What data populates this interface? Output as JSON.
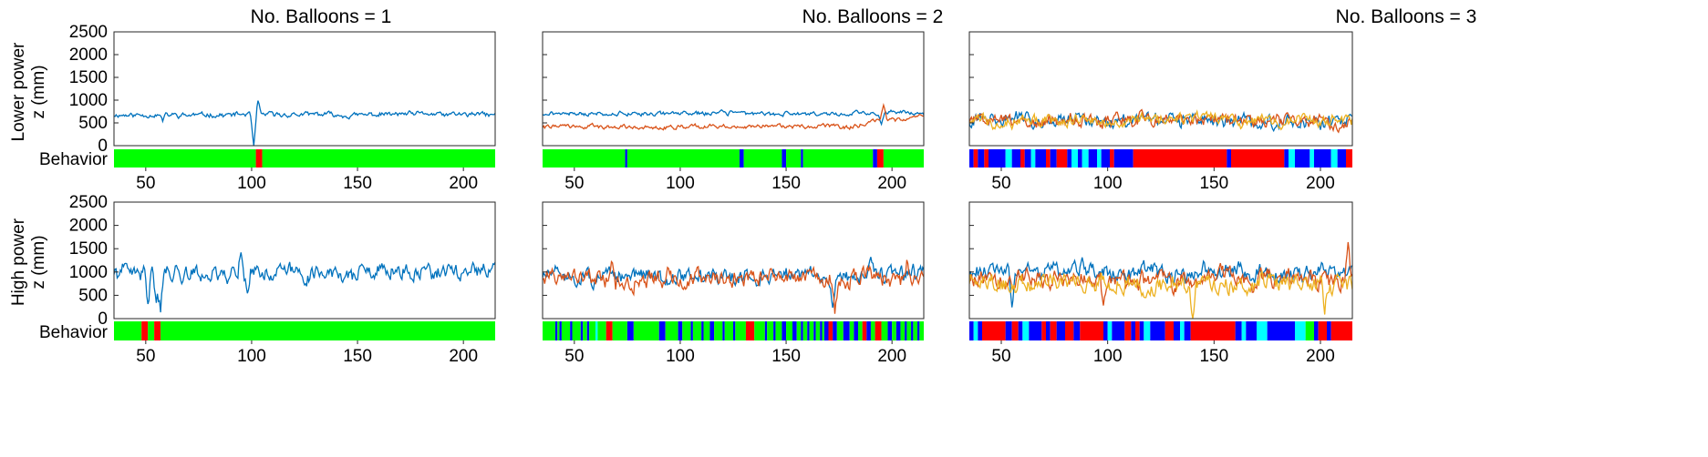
{
  "chart_data": {
    "type": "line",
    "column_titles": [
      "No. Balloons = 1",
      "No. Balloons = 2",
      "No. Balloons = 3"
    ],
    "row_labels": [
      [
        "Lower power",
        "z (mm)"
      ],
      [
        "High power",
        "z (mm)"
      ]
    ],
    "behavior_label": "Behavior",
    "xlim": [
      35,
      215
    ],
    "x_ticks": [
      50,
      100,
      150,
      200
    ],
    "x_tick_labels": [
      "50",
      "100",
      "150",
      "200"
    ],
    "ylim": [
      0,
      2500
    ],
    "y_ticks": [
      0,
      500,
      1000,
      1500,
      2000,
      2500
    ],
    "y_tick_labels": [
      "0",
      "500",
      "1000",
      "1500",
      "2000",
      "2500"
    ],
    "series_colors": [
      "#0072BD",
      "#D95319",
      "#EDB120"
    ],
    "behavior_colors": {
      "green": "#00FF00",
      "red": "#FF0000",
      "blue": "#0000FF",
      "cyan": "#00FFFF"
    },
    "panels": [
      {
        "row": 0,
        "col": 0,
        "series": [
          {
            "color": "#0072BD",
            "mean": 680,
            "amp": 70,
            "seed": 11,
            "spikes": [
              [
                101,
                -700
              ],
              [
                103,
                250
              ],
              [
                58,
                -120
              ]
            ]
          }
        ],
        "behavior": [
          [
            35,
            102,
            "green"
          ],
          [
            102,
            105,
            "red"
          ],
          [
            105,
            215,
            "green"
          ]
        ]
      },
      {
        "row": 0,
        "col": 1,
        "series": [
          {
            "color": "#0072BD",
            "mean": 710,
            "amp": 60,
            "seed": 21,
            "spikes": [
              [
                195,
                -250
              ]
            ]
          },
          {
            "color": "#D95319",
            "mean": 420,
            "amp": 60,
            "seed": 22,
            "spikes": [
              [
                196,
                350
              ]
            ],
            "trend": [
              180,
              250
            ]
          }
        ],
        "behavior": [
          [
            35,
            74,
            "green"
          ],
          [
            74,
            75,
            "blue"
          ],
          [
            75,
            128,
            "green"
          ],
          [
            128,
            130,
            "blue"
          ],
          [
            130,
            148,
            "green"
          ],
          [
            148,
            150,
            "blue"
          ],
          [
            150,
            157,
            "green"
          ],
          [
            157,
            158,
            "blue"
          ],
          [
            158,
            191,
            "green"
          ],
          [
            191,
            193,
            "blue"
          ],
          [
            193,
            196,
            "red"
          ],
          [
            196,
            215,
            "green"
          ]
        ]
      },
      {
        "row": 0,
        "col": 2,
        "series": [
          {
            "color": "#0072BD",
            "mean": 560,
            "amp": 190,
            "seed": 31,
            "spikes": []
          },
          {
            "color": "#D95319",
            "mean": 560,
            "amp": 190,
            "seed": 32,
            "spikes": []
          },
          {
            "color": "#EDB120",
            "mean": 560,
            "amp": 170,
            "seed": 33,
            "spikes": []
          }
        ],
        "behavior": [
          [
            35,
            37,
            "blue"
          ],
          [
            37,
            39,
            "red"
          ],
          [
            39,
            42,
            "blue"
          ],
          [
            42,
            44,
            "red"
          ],
          [
            44,
            52,
            "blue"
          ],
          [
            52,
            55,
            "cyan"
          ],
          [
            55,
            59,
            "blue"
          ],
          [
            59,
            61,
            "red"
          ],
          [
            61,
            64,
            "blue"
          ],
          [
            64,
            66,
            "cyan"
          ],
          [
            66,
            71,
            "blue"
          ],
          [
            71,
            73,
            "red"
          ],
          [
            73,
            76,
            "blue"
          ],
          [
            76,
            81,
            "red"
          ],
          [
            81,
            83,
            "blue"
          ],
          [
            83,
            86,
            "cyan"
          ],
          [
            86,
            88,
            "blue"
          ],
          [
            88,
            91,
            "cyan"
          ],
          [
            91,
            95,
            "blue"
          ],
          [
            95,
            97,
            "cyan"
          ],
          [
            97,
            101,
            "blue"
          ],
          [
            101,
            103,
            "red"
          ],
          [
            103,
            112,
            "blue"
          ],
          [
            112,
            156,
            "red"
          ],
          [
            156,
            158,
            "blue"
          ],
          [
            158,
            183,
            "red"
          ],
          [
            183,
            185,
            "blue"
          ],
          [
            185,
            188,
            "cyan"
          ],
          [
            188,
            195,
            "blue"
          ],
          [
            195,
            197,
            "cyan"
          ],
          [
            197,
            205,
            "blue"
          ],
          [
            205,
            208,
            "cyan"
          ],
          [
            208,
            212,
            "blue"
          ],
          [
            212,
            215,
            "red"
          ]
        ]
      },
      {
        "row": 1,
        "col": 0,
        "series": [
          {
            "color": "#0072BD",
            "mean": 980,
            "amp": 230,
            "seed": 41,
            "spikes": [
              [
                51,
                -750
              ],
              [
                55,
                -500
              ],
              [
                57,
                -650
              ],
              [
                95,
                550
              ],
              [
                98,
                -350
              ]
            ]
          }
        ],
        "behavior": [
          [
            35,
            48,
            "green"
          ],
          [
            48,
            51,
            "red"
          ],
          [
            51,
            54,
            "green"
          ],
          [
            54,
            57,
            "red"
          ],
          [
            57,
            215,
            "green"
          ]
        ]
      },
      {
        "row": 1,
        "col": 1,
        "series": [
          {
            "color": "#0072BD",
            "mean": 920,
            "amp": 220,
            "seed": 51,
            "spikes": [
              [
                172,
                -700
              ],
              [
                190,
                450
              ]
            ]
          },
          {
            "color": "#D95319",
            "mean": 880,
            "amp": 240,
            "seed": 52,
            "spikes": [
              [
                68,
                350
              ],
              [
                173,
                -650
              ],
              [
                207,
                350
              ]
            ]
          }
        ],
        "behavior": [
          [
            35,
            41,
            "green"
          ],
          [
            41,
            42,
            "blue"
          ],
          [
            42,
            43,
            "green"
          ],
          [
            43,
            44,
            "blue"
          ],
          [
            44,
            48,
            "green"
          ],
          [
            48,
            49,
            "blue"
          ],
          [
            49,
            53,
            "green"
          ],
          [
            53,
            54,
            "blue"
          ],
          [
            54,
            56,
            "green"
          ],
          [
            56,
            57,
            "blue"
          ],
          [
            57,
            60,
            "green"
          ],
          [
            60,
            61,
            "cyan"
          ],
          [
            61,
            65,
            "green"
          ],
          [
            65,
            68,
            "red"
          ],
          [
            68,
            75,
            "green"
          ],
          [
            75,
            78,
            "blue"
          ],
          [
            78,
            90,
            "green"
          ],
          [
            90,
            93,
            "blue"
          ],
          [
            93,
            99,
            "green"
          ],
          [
            99,
            101,
            "blue"
          ],
          [
            101,
            105,
            "green"
          ],
          [
            105,
            106,
            "blue"
          ],
          [
            106,
            110,
            "green"
          ],
          [
            110,
            111,
            "blue"
          ],
          [
            111,
            114,
            "green"
          ],
          [
            114,
            116,
            "blue"
          ],
          [
            116,
            120,
            "green"
          ],
          [
            120,
            121,
            "blue"
          ],
          [
            121,
            125,
            "green"
          ],
          [
            125,
            126,
            "blue"
          ],
          [
            126,
            131,
            "green"
          ],
          [
            131,
            135,
            "red"
          ],
          [
            135,
            140,
            "green"
          ],
          [
            140,
            141,
            "blue"
          ],
          [
            141,
            144,
            "green"
          ],
          [
            144,
            145,
            "blue"
          ],
          [
            145,
            148,
            "green"
          ],
          [
            148,
            150,
            "blue"
          ],
          [
            150,
            153,
            "green"
          ],
          [
            153,
            155,
            "blue"
          ],
          [
            155,
            157,
            "green"
          ],
          [
            157,
            158,
            "blue"
          ],
          [
            158,
            160,
            "green"
          ],
          [
            160,
            161,
            "blue"
          ],
          [
            161,
            163,
            "green"
          ],
          [
            163,
            164,
            "blue"
          ],
          [
            164,
            166,
            "green"
          ],
          [
            166,
            167,
            "blue"
          ],
          [
            167,
            168,
            "green"
          ],
          [
            168,
            170,
            "blue"
          ],
          [
            170,
            172,
            "red"
          ],
          [
            172,
            174,
            "blue"
          ],
          [
            174,
            177,
            "green"
          ],
          [
            177,
            180,
            "blue"
          ],
          [
            180,
            182,
            "green"
          ],
          [
            182,
            184,
            "blue"
          ],
          [
            184,
            186,
            "green"
          ],
          [
            186,
            188,
            "red"
          ],
          [
            188,
            190,
            "blue"
          ],
          [
            190,
            192,
            "green"
          ],
          [
            192,
            195,
            "red"
          ],
          [
            195,
            198,
            "green"
          ],
          [
            198,
            200,
            "blue"
          ],
          [
            200,
            202,
            "green"
          ],
          [
            202,
            204,
            "blue"
          ],
          [
            204,
            206,
            "green"
          ],
          [
            206,
            207,
            "blue"
          ],
          [
            207,
            209,
            "green"
          ],
          [
            209,
            210,
            "blue"
          ],
          [
            210,
            212,
            "green"
          ],
          [
            212,
            213,
            "blue"
          ],
          [
            213,
            215,
            "green"
          ]
        ]
      },
      {
        "row": 1,
        "col": 2,
        "series": [
          {
            "color": "#0072BD",
            "mean": 980,
            "amp": 230,
            "seed": 61,
            "spikes": [
              [
                88,
                450
              ],
              [
                55,
                -700
              ]
            ]
          },
          {
            "color": "#D95319",
            "mean": 860,
            "amp": 250,
            "seed": 62,
            "spikes": [
              [
                213,
                650
              ],
              [
                98,
                -600
              ]
            ]
          },
          {
            "color": "#EDB120",
            "mean": 780,
            "amp": 250,
            "seed": 63,
            "spikes": [
              [
                140,
                -700
              ],
              [
                202,
                -650
              ]
            ]
          }
        ],
        "behavior": [
          [
            35,
            37,
            "blue"
          ],
          [
            37,
            39,
            "cyan"
          ],
          [
            39,
            41,
            "blue"
          ],
          [
            41,
            52,
            "red"
          ],
          [
            52,
            55,
            "blue"
          ],
          [
            55,
            58,
            "red"
          ],
          [
            58,
            60,
            "blue"
          ],
          [
            60,
            63,
            "cyan"
          ],
          [
            63,
            69,
            "blue"
          ],
          [
            69,
            71,
            "red"
          ],
          [
            71,
            73,
            "blue"
          ],
          [
            73,
            76,
            "red"
          ],
          [
            76,
            80,
            "blue"
          ],
          [
            80,
            84,
            "red"
          ],
          [
            84,
            87,
            "blue"
          ],
          [
            87,
            98,
            "red"
          ],
          [
            98,
            100,
            "blue"
          ],
          [
            100,
            102,
            "cyan"
          ],
          [
            102,
            108,
            "blue"
          ],
          [
            108,
            111,
            "red"
          ],
          [
            111,
            113,
            "blue"
          ],
          [
            113,
            115,
            "red"
          ],
          [
            115,
            117,
            "blue"
          ],
          [
            117,
            120,
            "cyan"
          ],
          [
            120,
            127,
            "blue"
          ],
          [
            127,
            131,
            "red"
          ],
          [
            131,
            134,
            "blue"
          ],
          [
            134,
            136,
            "cyan"
          ],
          [
            136,
            139,
            "blue"
          ],
          [
            139,
            160,
            "red"
          ],
          [
            160,
            163,
            "blue"
          ],
          [
            163,
            165,
            "cyan"
          ],
          [
            165,
            170,
            "blue"
          ],
          [
            170,
            175,
            "cyan"
          ],
          [
            175,
            188,
            "blue"
          ],
          [
            188,
            193,
            "cyan"
          ],
          [
            193,
            197,
            "green"
          ],
          [
            197,
            199,
            "blue"
          ],
          [
            199,
            203,
            "red"
          ],
          [
            203,
            205,
            "blue"
          ],
          [
            205,
            215,
            "red"
          ]
        ]
      }
    ]
  }
}
